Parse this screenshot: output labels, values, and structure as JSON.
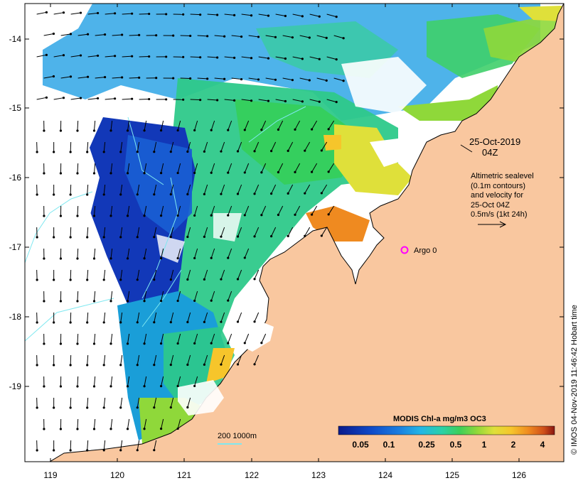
{
  "map": {
    "date_line1": "25-Oct-2019",
    "date_line2": "04Z",
    "legend_text": [
      "Altimetric sealevel",
      "(0.1m contours)",
      "and velocity for",
      "25-Oct 04Z",
      "0.5m/s (1kt 24h)"
    ],
    "argo_label": "Argo 0",
    "scale_label": "200  1000m",
    "side_credit": "© IMOS 04-Nov-2019 11:46:42 Hobart time",
    "colorbar": {
      "title": "MODIS Chl-a mg/m3 OC3",
      "tick_labels": [
        "0.05",
        "0.1",
        "0.25",
        "0.5",
        "1",
        "2",
        "4"
      ],
      "colors": [
        "#0a1a8c",
        "#0f49c8",
        "#1a7ee0",
        "#23b6e6",
        "#2bd1a6",
        "#3ccf5a",
        "#8fd83a",
        "#dfe03a",
        "#f6c52b",
        "#ef8a20",
        "#d0501a",
        "#8a1610"
      ]
    },
    "x_ticks": [
      "119",
      "120",
      "121",
      "122",
      "123",
      "124",
      "125",
      "126"
    ],
    "y_ticks": [
      "-14",
      "-15",
      "-16",
      "-17",
      "-18",
      "-19"
    ],
    "colors": {
      "land": "#f9c79f",
      "coast": "#000000",
      "argo": "#ff00ff",
      "contour": "#7fe8f0"
    }
  }
}
